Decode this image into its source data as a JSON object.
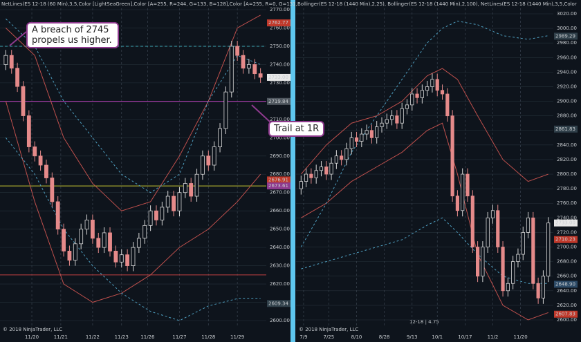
{
  "chart_data": [
    {
      "type": "candlestick",
      "title": "NetLines(ES 12-18 (60 Min),3,5,Color [LightSeaGreen],Color [A=255, R=244, G=133, B=128],Color [A=255, R=0, G=131,",
      "footer": "© 2018 NinjaTrader, LLC",
      "annotation": "A breach of 2745 propels us higher.",
      "annotation2": "Trail at 1R",
      "up_color": "#d8d8d8",
      "down_color": "#e58a8a",
      "xlim": [
        -1,
        45
      ],
      "xticks": [
        {
          "value": 4.5,
          "label": "11/20"
        },
        {
          "value": 9.5,
          "label": "11/21"
        },
        {
          "value": 15,
          "label": "11/22"
        },
        {
          "value": 20,
          "label": "11/23"
        },
        {
          "value": 24.5,
          "label": "11/26"
        },
        {
          "value": 30,
          "label": "11/27"
        },
        {
          "value": 35,
          "label": "11/28"
        },
        {
          "value": 40,
          "label": "11/29"
        }
      ],
      "ylim": [
        2600,
        2770
      ],
      "yticks": [
        {
          "value": 2770,
          "label": "2770.00"
        },
        {
          "value": 2760,
          "label": "2760.00"
        },
        {
          "value": 2750,
          "label": "2750.00"
        },
        {
          "value": 2740,
          "label": "2740.00"
        },
        {
          "value": 2730,
          "label": "2730.00"
        },
        {
          "value": 2720,
          "label": "2720.00"
        },
        {
          "value": 2710,
          "label": "2710.00"
        },
        {
          "value": 2700,
          "label": "2700.00"
        },
        {
          "value": 2690,
          "label": "2690.00"
        },
        {
          "value": 2680,
          "label": "2680.00"
        },
        {
          "value": 2670,
          "label": "2670.00"
        },
        {
          "value": 2660,
          "label": "2660.00"
        },
        {
          "value": 2650,
          "label": "2650.00"
        },
        {
          "value": 2640,
          "label": "2640.00"
        },
        {
          "value": 2630,
          "label": "2630.00"
        },
        {
          "value": 2620,
          "label": "2620.00"
        },
        {
          "value": 2610,
          "label": "2610.00"
        },
        {
          "value": 2600,
          "label": "2600.00"
        }
      ],
      "candles": [
        [
          2740,
          2748,
          2737,
          2745
        ],
        [
          2745,
          2748,
          2735,
          2738
        ],
        [
          2738,
          2741,
          2725,
          2728
        ],
        [
          2728,
          2731,
          2709,
          2712
        ],
        [
          2712,
          2715,
          2692,
          2695
        ],
        [
          2695,
          2698,
          2687,
          2690
        ],
        [
          2690,
          2693,
          2682,
          2685
        ],
        [
          2685,
          2688,
          2675,
          2678
        ],
        [
          2678,
          2681,
          2662,
          2665
        ],
        [
          2665,
          2668,
          2647,
          2650
        ],
        [
          2650,
          2653,
          2635,
          2638
        ],
        [
          2638,
          2641,
          2630,
          2633
        ],
        [
          2633,
          2645,
          2630,
          2642
        ],
        [
          2642,
          2653,
          2639,
          2650
        ],
        [
          2650,
          2658,
          2647,
          2655
        ],
        [
          2655,
          2658,
          2642,
          2645
        ],
        [
          2645,
          2648,
          2637,
          2640
        ],
        [
          2640,
          2651,
          2637,
          2648
        ],
        [
          2648,
          2651,
          2635,
          2638
        ],
        [
          2638,
          2641,
          2629,
          2632
        ],
        [
          2632,
          2639,
          2629,
          2636
        ],
        [
          2636,
          2639,
          2627,
          2630
        ],
        [
          2630,
          2643,
          2627,
          2640
        ],
        [
          2640,
          2648,
          2637,
          2645
        ],
        [
          2645,
          2655,
          2642,
          2652
        ],
        [
          2652,
          2663,
          2649,
          2660
        ],
        [
          2660,
          2663,
          2652,
          2655
        ],
        [
          2655,
          2665,
          2652,
          2662
        ],
        [
          2662,
          2671,
          2659,
          2668
        ],
        [
          2668,
          2671,
          2657,
          2660
        ],
        [
          2660,
          2673,
          2657,
          2670
        ],
        [
          2670,
          2678,
          2667,
          2675
        ],
        [
          2675,
          2678,
          2665,
          2668
        ],
        [
          2668,
          2683,
          2665,
          2680
        ],
        [
          2680,
          2693,
          2677,
          2690
        ],
        [
          2690,
          2693,
          2682,
          2685
        ],
        [
          2685,
          2698,
          2682,
          2695
        ],
        [
          2695,
          2708,
          2692,
          2705
        ],
        [
          2705,
          2728,
          2702,
          2725
        ],
        [
          2725,
          2753,
          2722,
          2750
        ],
        [
          2750,
          2753,
          2742,
          2745
        ],
        [
          2745,
          2748,
          2735,
          2738
        ],
        [
          2738,
          2743,
          2735,
          2740
        ],
        [
          2740,
          2743,
          2732,
          2735
        ],
        [
          2735,
          2738,
          2730,
          2733
        ]
      ],
      "series": [
        {
          "color": "#c0504d",
          "dashed": false,
          "x": [
            0,
            5,
            10,
            15,
            20,
            25,
            30,
            35,
            40,
            44
          ],
          "values": [
            2760,
            2745,
            2700,
            2675,
            2660,
            2665,
            2690,
            2720,
            2760,
            2767
          ]
        },
        {
          "color": "#c0504d",
          "dashed": false,
          "x": [
            0,
            5,
            10,
            15,
            20,
            25,
            30,
            35,
            40,
            44
          ],
          "values": [
            2720,
            2665,
            2620,
            2610,
            2615,
            2625,
            2640,
            2650,
            2665,
            2680
          ]
        },
        {
          "color": "#4f9fc0",
          "dashed": true,
          "x": [
            0,
            5,
            10,
            15,
            20,
            25,
            30,
            35,
            40,
            44
          ],
          "values": [
            2765,
            2750,
            2720,
            2700,
            2680,
            2670,
            2680,
            2720,
            2745,
            2740
          ]
        },
        {
          "color": "#4f9fc0",
          "dashed": true,
          "x": [
            0,
            5,
            10,
            15,
            20,
            25,
            30,
            35,
            40,
            44
          ],
          "values": [
            2700,
            2680,
            2650,
            2630,
            2615,
            2605,
            2600,
            2608,
            2612,
            2612
          ]
        }
      ],
      "levels": [
        {
          "value": 2750,
          "color": "#3fa9b5",
          "dashed": true
        },
        {
          "value": 2719.84,
          "color": "#c040c0",
          "dashed": false
        },
        {
          "value": 2673.61,
          "color": "#c8c830",
          "dashed": false
        },
        {
          "value": 2625,
          "color": "#c04040",
          "dashed": false
        }
      ],
      "price_tags": [
        {
          "value": 2762.77,
          "label": "2762.77",
          "color": "#c0392b"
        },
        {
          "value": 2733,
          "label": "2733.00",
          "color": "#e8e8e8"
        },
        {
          "value": 2719.84,
          "label": "2719.84",
          "color": "#505860"
        },
        {
          "value": 2676.91,
          "label": "2676.91",
          "color": "#c0392b"
        },
        {
          "value": 2673.61,
          "label": "2673.61",
          "color": "#8e3a8e"
        },
        {
          "value": 2609.34,
          "label": "2609.34",
          "color": "#30404a"
        }
      ]
    },
    {
      "type": "candlestick",
      "title": "Bollinger(ES 12-18 (1440 Min),2,25), Bollinger(ES 12-18 (1440 Min),2,100), NetLines(ES 12-18 (1440 Min),3,5,Color",
      "footer": "© 2018 NinjaTrader, LLC",
      "status": "12-18 | 4.75",
      "up_color": "#d8d8d8",
      "down_color": "#e58a8a",
      "xlim": [
        -1,
        50
      ],
      "xticks": [
        {
          "value": 0.5,
          "label": "7/9"
        },
        {
          "value": 5.5,
          "label": "7/25"
        },
        {
          "value": 11,
          "label": "8/10"
        },
        {
          "value": 16.5,
          "label": "8/28"
        },
        {
          "value": 22,
          "label": "9/13"
        },
        {
          "value": 27,
          "label": "10/1"
        },
        {
          "value": 32.5,
          "label": "10/17"
        },
        {
          "value": 38,
          "label": "11/2"
        },
        {
          "value": 43.5,
          "label": "11/20"
        }
      ],
      "ylim": [
        2600,
        3020
      ],
      "yticks": [
        {
          "value": 3020,
          "label": "3020.00"
        },
        {
          "value": 3000,
          "label": "3000.00"
        },
        {
          "value": 2980,
          "label": "2980.00"
        },
        {
          "value": 2960,
          "label": "2960.00"
        },
        {
          "value": 2940,
          "label": "2940.00"
        },
        {
          "value": 2920,
          "label": "2920.00"
        },
        {
          "value": 2900,
          "label": "2900.00"
        },
        {
          "value": 2880,
          "label": "2880.00"
        },
        {
          "value": 2860,
          "label": "2860.00"
        },
        {
          "value": 2840,
          "label": "2840.00"
        },
        {
          "value": 2820,
          "label": "2820.00"
        },
        {
          "value": 2800,
          "label": "2800.00"
        },
        {
          "value": 2780,
          "label": "2780.00"
        },
        {
          "value": 2760,
          "label": "2760.00"
        },
        {
          "value": 2740,
          "label": "2740.00"
        },
        {
          "value": 2720,
          "label": "2720.00"
        },
        {
          "value": 2700,
          "label": "2700.00"
        },
        {
          "value": 2680,
          "label": "2680.00"
        },
        {
          "value": 2660,
          "label": "2660.00"
        },
        {
          "value": 2640,
          "label": "2640.00"
        },
        {
          "value": 2620,
          "label": "2620.00"
        },
        {
          "value": 2600,
          "label": "2600.00"
        }
      ],
      "candles": [
        [
          2780,
          2798,
          2772,
          2790
        ],
        [
          2790,
          2808,
          2782,
          2800
        ],
        [
          2800,
          2808,
          2787,
          2795
        ],
        [
          2795,
          2813,
          2787,
          2805
        ],
        [
          2805,
          2818,
          2797,
          2810
        ],
        [
          2810,
          2818,
          2792,
          2800
        ],
        [
          2800,
          2823,
          2792,
          2815
        ],
        [
          2815,
          2833,
          2807,
          2825
        ],
        [
          2825,
          2833,
          2812,
          2820
        ],
        [
          2820,
          2843,
          2812,
          2835
        ],
        [
          2835,
          2858,
          2827,
          2850
        ],
        [
          2850,
          2858,
          2837,
          2845
        ],
        [
          2845,
          2863,
          2837,
          2855
        ],
        [
          2855,
          2868,
          2847,
          2860
        ],
        [
          2860,
          2868,
          2842,
          2850
        ],
        [
          2850,
          2873,
          2842,
          2865
        ],
        [
          2865,
          2878,
          2857,
          2870
        ],
        [
          2870,
          2883,
          2862,
          2875
        ],
        [
          2875,
          2888,
          2867,
          2880
        ],
        [
          2880,
          2888,
          2862,
          2870
        ],
        [
          2870,
          2898,
          2862,
          2890
        ],
        [
          2890,
          2903,
          2882,
          2895
        ],
        [
          2895,
          2918,
          2887,
          2910
        ],
        [
          2910,
          2918,
          2897,
          2905
        ],
        [
          2905,
          2923,
          2897,
          2915
        ],
        [
          2915,
          2928,
          2907,
          2920
        ],
        [
          2920,
          2938,
          2912,
          2930
        ],
        [
          2930,
          2938,
          2907,
          2915
        ],
        [
          2915,
          2923,
          2902,
          2910
        ],
        [
          2910,
          2918,
          2872,
          2880
        ],
        [
          2880,
          2888,
          2762,
          2770
        ],
        [
          2770,
          2778,
          2742,
          2750
        ],
        [
          2750,
          2808,
          2742,
          2800
        ],
        [
          2800,
          2808,
          2762,
          2770
        ],
        [
          2770,
          2778,
          2692,
          2700
        ],
        [
          2700,
          2708,
          2652,
          2660
        ],
        [
          2660,
          2708,
          2652,
          2700
        ],
        [
          2700,
          2748,
          2692,
          2740
        ],
        [
          2740,
          2758,
          2732,
          2750
        ],
        [
          2750,
          2758,
          2692,
          2700
        ],
        [
          2700,
          2708,
          2632,
          2640
        ],
        [
          2640,
          2658,
          2632,
          2650
        ],
        [
          2650,
          2688,
          2642,
          2680
        ],
        [
          2680,
          2698,
          2672,
          2690
        ],
        [
          2690,
          2728,
          2682,
          2720
        ],
        [
          2720,
          2748,
          2712,
          2740
        ],
        [
          2740,
          2748,
          2642,
          2650
        ],
        [
          2650,
          2658,
          2622,
          2630
        ],
        [
          2630,
          2668,
          2622,
          2660
        ],
        [
          2660,
          2741,
          2652,
          2733
        ]
      ],
      "series": [
        {
          "color": "#c0504d",
          "dashed": false,
          "x": [
            0,
            5,
            10,
            15,
            20,
            25,
            28,
            31,
            35,
            40,
            45,
            49
          ],
          "values": [
            2800,
            2840,
            2870,
            2880,
            2900,
            2935,
            2945,
            2930,
            2880,
            2820,
            2790,
            2800
          ]
        },
        {
          "color": "#c0504d",
          "dashed": false,
          "x": [
            0,
            5,
            10,
            15,
            20,
            25,
            28,
            31,
            35,
            40,
            45,
            49
          ],
          "values": [
            2740,
            2760,
            2790,
            2810,
            2830,
            2860,
            2870,
            2800,
            2690,
            2620,
            2600,
            2610
          ]
        },
        {
          "color": "#4f9fc0",
          "dashed": true,
          "x": [
            0,
            5,
            10,
            15,
            20,
            25,
            28,
            31,
            35,
            40,
            45,
            49
          ],
          "values": [
            2700,
            2760,
            2830,
            2880,
            2930,
            2980,
            3000,
            3010,
            3005,
            2990,
            2985,
            2990
          ]
        },
        {
          "color": "#4f9fc0",
          "dashed": true,
          "x": [
            0,
            5,
            10,
            15,
            20,
            25,
            28,
            31,
            35,
            40,
            45,
            49
          ],
          "values": [
            2670,
            2680,
            2690,
            2700,
            2710,
            2730,
            2740,
            2720,
            2690,
            2660,
            2650,
            2650
          ]
        }
      ],
      "levels": [],
      "price_tags": [
        {
          "value": 2989.29,
          "label": "2989.29",
          "color": "#30404a"
        },
        {
          "value": 2861.83,
          "label": "2861.83",
          "color": "#30404a"
        },
        {
          "value": 2733,
          "label": "2733.00",
          "color": "#e8e8e8"
        },
        {
          "value": 2710.23,
          "label": "2710.23",
          "color": "#c0392b"
        },
        {
          "value": 2648.9,
          "label": "2648.90",
          "color": "#2c4a66"
        },
        {
          "value": 2607.83,
          "label": "2607.83",
          "color": "#c0392b"
        }
      ]
    }
  ]
}
